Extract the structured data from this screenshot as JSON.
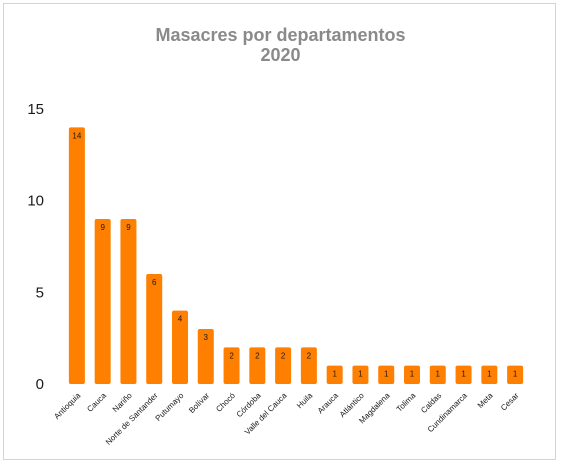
{
  "chart_data": {
    "type": "bar",
    "title": [
      "Masacres por departamentos",
      "2020"
    ],
    "xlabel": "",
    "ylabel": "",
    "categories": [
      "Antioquia",
      "Cauca",
      "Nariño",
      "Norte de Santander",
      "Putumayo",
      "Bolívar",
      "Chocó",
      "Córdoba",
      "Valle del Cauca",
      "Huila",
      "Arauca",
      "Atlántico",
      "Magdalena",
      "Tolima",
      "Caldas",
      "Cundinamarca",
      "Meta",
      "Cesar"
    ],
    "values": [
      14,
      9,
      9,
      6,
      4,
      3,
      2,
      2,
      2,
      2,
      1,
      1,
      1,
      1,
      1,
      1,
      1,
      1
    ],
    "ylim": [
      0,
      15
    ],
    "yticks": [
      0,
      5,
      10,
      15
    ],
    "bar_color": "#ff7f00",
    "grid": false,
    "legend": "none",
    "data_labels": true
  }
}
